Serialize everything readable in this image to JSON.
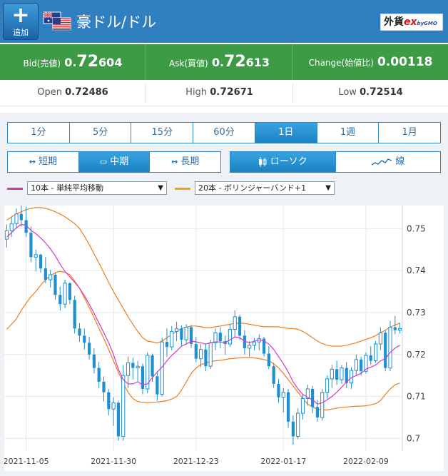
{
  "header": {
    "add_label": "追加",
    "add_glyph": "+",
    "pair_title": "豪ドル/ドル",
    "brand_main": "外貨",
    "brand_ex": "ex",
    "brand_sub": "byGMO",
    "flag_icon": "aus-usa-flag-icon"
  },
  "quote": {
    "bid": {
      "label": "Bid(売値)",
      "pre": "0.",
      "big": "72",
      "small": "604"
    },
    "ask": {
      "label": "Ask(買値)",
      "pre": "0.",
      "big": "72",
      "small": "613"
    },
    "change": {
      "label": "Change(始値比)",
      "value": "0.00118"
    }
  },
  "stats": {
    "open": {
      "label": "Open",
      "pre": "0.",
      "big": "72",
      "small": "486"
    },
    "high": {
      "label": "High",
      "pre": "0.",
      "big": "72",
      "small": "671"
    },
    "low": {
      "label": "Low",
      "pre": "0.",
      "big": "72",
      "small": "514"
    }
  },
  "timeframes": {
    "tabs": [
      "1分",
      "5分",
      "15分",
      "60分",
      "1日",
      "1週",
      "1月"
    ],
    "active": "1日"
  },
  "term": {
    "items": [
      "短期",
      "中期",
      "長期"
    ],
    "icons": [
      "↔",
      "▭",
      "↔"
    ],
    "active": "中期"
  },
  "chart_type": {
    "items": [
      "ローソク",
      "線"
    ],
    "active": "ローソク"
  },
  "indicators": {
    "primary": {
      "value": "10本 - 単純平均移動",
      "color": "#d6389c"
    },
    "secondary": {
      "value": "20本 - ボリンジャーバンド+1",
      "color": "#f2a20f"
    }
  },
  "colors": {
    "candle": "#1f8fcf",
    "sma": "#d637c9",
    "bollinger": "#f07d1c",
    "header": "#2f7fc1",
    "quote_bar": "#3d9b46"
  },
  "chart_data": {
    "type": "candlestick",
    "ylim": [
      0.697,
      0.7555
    ],
    "yticks": [
      0.75,
      0.74,
      0.73,
      0.72,
      0.71,
      0.7
    ],
    "ytick_labels": [
      "0.75",
      "0.74",
      "0.73",
      "0.72",
      "0.71",
      "0.7"
    ],
    "xtick_labels": [
      "2021-11-05",
      "2021-11-30",
      "2021-12-23",
      "2022-01-17",
      "2022-02-09"
    ],
    "xtick_index": [
      4,
      22,
      39,
      57,
      74
    ],
    "candles": [
      [
        0.7475,
        0.751,
        0.7455,
        0.7495
      ],
      [
        0.7495,
        0.7528,
        0.748,
        0.7512
      ],
      [
        0.7512,
        0.7548,
        0.75,
        0.7535
      ],
      [
        0.7535,
        0.7555,
        0.7505,
        0.752
      ],
      [
        0.752,
        0.7552,
        0.748,
        0.749
      ],
      [
        0.749,
        0.7505,
        0.742,
        0.7432
      ],
      [
        0.7432,
        0.745,
        0.7398,
        0.7438
      ],
      [
        0.7438,
        0.744,
        0.7395,
        0.7405
      ],
      [
        0.7405,
        0.7432,
        0.737,
        0.7378
      ],
      [
        0.7378,
        0.7402,
        0.736,
        0.739
      ],
      [
        0.739,
        0.7395,
        0.733,
        0.7342
      ],
      [
        0.7342,
        0.7362,
        0.7305,
        0.732
      ],
      [
        0.732,
        0.7378,
        0.731,
        0.737
      ],
      [
        0.737,
        0.7372,
        0.732,
        0.733
      ],
      [
        0.733,
        0.734,
        0.725,
        0.7262
      ],
      [
        0.7262,
        0.7275,
        0.723,
        0.7245
      ],
      [
        0.7245,
        0.7262,
        0.7212,
        0.7228
      ],
      [
        0.7228,
        0.7242,
        0.7188,
        0.72
      ],
      [
        0.72,
        0.7215,
        0.7155,
        0.7168
      ],
      [
        0.7168,
        0.7182,
        0.712,
        0.7135
      ],
      [
        0.7135,
        0.7148,
        0.7088,
        0.711
      ],
      [
        0.711,
        0.7118,
        0.7055,
        0.707
      ],
      [
        0.707,
        0.7098,
        0.703,
        0.7085
      ],
      [
        0.7085,
        0.709,
        0.6995,
        0.7005
      ],
      [
        0.7005,
        0.7175,
        0.6995,
        0.715
      ],
      [
        0.715,
        0.7195,
        0.712,
        0.718
      ],
      [
        0.718,
        0.7192,
        0.714,
        0.7168
      ],
      [
        0.7168,
        0.7185,
        0.7135,
        0.7172
      ],
      [
        0.7172,
        0.7178,
        0.7105,
        0.7118
      ],
      [
        0.7118,
        0.7205,
        0.7108,
        0.7198
      ],
      [
        0.7198,
        0.7202,
        0.7135,
        0.7148
      ],
      [
        0.7148,
        0.716,
        0.709,
        0.7105
      ],
      [
        0.7105,
        0.724,
        0.71,
        0.723
      ],
      [
        0.723,
        0.7262,
        0.7195,
        0.7218
      ],
      [
        0.7218,
        0.7268,
        0.721,
        0.7255
      ],
      [
        0.7255,
        0.7278,
        0.7232,
        0.7262
      ],
      [
        0.7262,
        0.727,
        0.722,
        0.7235
      ],
      [
        0.7235,
        0.7272,
        0.7225,
        0.7265
      ],
      [
        0.7265,
        0.727,
        0.7215,
        0.7225
      ],
      [
        0.7225,
        0.7242,
        0.7182,
        0.719
      ],
      [
        0.719,
        0.7225,
        0.717,
        0.7212
      ],
      [
        0.7212,
        0.7225,
        0.716,
        0.7172
      ],
      [
        0.7172,
        0.7235,
        0.7165,
        0.7228
      ],
      [
        0.7228,
        0.7262,
        0.721,
        0.7252
      ],
      [
        0.7252,
        0.7265,
        0.7215,
        0.7232
      ],
      [
        0.7232,
        0.7245,
        0.72,
        0.7225
      ],
      [
        0.7225,
        0.7272,
        0.7218,
        0.726
      ],
      [
        0.726,
        0.7305,
        0.724,
        0.729
      ],
      [
        0.729,
        0.7295,
        0.7235,
        0.7245
      ],
      [
        0.7245,
        0.7258,
        0.72,
        0.7215
      ],
      [
        0.7215,
        0.7232,
        0.7195,
        0.7222
      ],
      [
        0.7222,
        0.724,
        0.721,
        0.723
      ],
      [
        0.723,
        0.7248,
        0.721,
        0.7238
      ],
      [
        0.7238,
        0.7242,
        0.7195,
        0.7202
      ],
      [
        0.7202,
        0.722,
        0.7165,
        0.7172
      ],
      [
        0.7172,
        0.718,
        0.712,
        0.713
      ],
      [
        0.713,
        0.7142,
        0.7085,
        0.7098
      ],
      [
        0.7098,
        0.712,
        0.7062,
        0.711
      ],
      [
        0.711,
        0.7118,
        0.7025,
        0.704
      ],
      [
        0.704,
        0.7055,
        0.6985,
        0.7005
      ],
      [
        0.7005,
        0.7072,
        0.6998,
        0.706
      ],
      [
        0.706,
        0.7105,
        0.7045,
        0.7095
      ],
      [
        0.7095,
        0.7128,
        0.7078,
        0.7118
      ],
      [
        0.7118,
        0.7125,
        0.706,
        0.7075
      ],
      [
        0.7075,
        0.7092,
        0.704,
        0.705
      ],
      [
        0.705,
        0.7118,
        0.7042,
        0.711
      ],
      [
        0.711,
        0.715,
        0.7095,
        0.7142
      ],
      [
        0.7142,
        0.7175,
        0.712,
        0.7165
      ],
      [
        0.7165,
        0.7185,
        0.7128,
        0.714
      ],
      [
        0.714,
        0.7175,
        0.713,
        0.7168
      ],
      [
        0.7168,
        0.7182,
        0.712,
        0.7132
      ],
      [
        0.7132,
        0.717,
        0.7118,
        0.7162
      ],
      [
        0.7162,
        0.72,
        0.7148,
        0.7188
      ],
      [
        0.7188,
        0.7195,
        0.715,
        0.716
      ],
      [
        0.716,
        0.7205,
        0.7155,
        0.7198
      ],
      [
        0.7198,
        0.722,
        0.7175,
        0.7185
      ],
      [
        0.7185,
        0.7232,
        0.718,
        0.7225
      ],
      [
        0.7225,
        0.7265,
        0.721,
        0.7252
      ],
      [
        0.7252,
        0.7258,
        0.716,
        0.7168
      ],
      [
        0.7168,
        0.728,
        0.716,
        0.7265
      ],
      [
        0.7265,
        0.7292,
        0.7248,
        0.7258
      ],
      [
        0.7258,
        0.7275,
        0.725,
        0.7262
      ]
    ],
    "sma10": [
      0.748,
      0.749,
      0.7502,
      0.751,
      0.7508,
      0.7496,
      0.7488,
      0.7478,
      0.7466,
      0.7452,
      0.7435,
      0.7415,
      0.7398,
      0.7385,
      0.7372,
      0.7358,
      0.734,
      0.732,
      0.7298,
      0.7275,
      0.7252,
      0.7228,
      0.72,
      0.7165,
      0.714,
      0.713,
      0.713,
      0.7135,
      0.7128,
      0.713,
      0.7145,
      0.7158,
      0.717,
      0.7185,
      0.7198,
      0.7208,
      0.722,
      0.7225,
      0.7232,
      0.723,
      0.7228,
      0.7225,
      0.7228,
      0.723,
      0.723,
      0.7228,
      0.7235,
      0.7242,
      0.724,
      0.7232,
      0.7228,
      0.7232,
      0.7235,
      0.7232,
      0.7225,
      0.7212,
      0.7195,
      0.7178,
      0.7158,
      0.7135,
      0.7118,
      0.7105,
      0.7098,
      0.7092,
      0.7082,
      0.7085,
      0.7092,
      0.71,
      0.711,
      0.7122,
      0.7135,
      0.7145,
      0.715,
      0.7155,
      0.7165,
      0.717,
      0.7175,
      0.7185,
      0.719,
      0.7205,
      0.7215,
      0.7222
    ],
    "bb_upper": [
      0.752,
      0.7528,
      0.7535,
      0.754,
      0.7545,
      0.7548,
      0.755,
      0.755,
      0.7548,
      0.7545,
      0.754,
      0.7535,
      0.7528,
      0.752,
      0.7512,
      0.75,
      0.7482,
      0.7462,
      0.744,
      0.7418,
      0.7395,
      0.7372,
      0.735,
      0.733,
      0.731,
      0.729,
      0.7272,
      0.7255,
      0.724,
      0.7232,
      0.723,
      0.7228,
      0.7232,
      0.724,
      0.7248,
      0.7255,
      0.7262,
      0.7265,
      0.7268,
      0.7268,
      0.7266,
      0.7264,
      0.7264,
      0.7266,
      0.7268,
      0.727,
      0.7272,
      0.7274,
      0.7275,
      0.7274,
      0.7272,
      0.727,
      0.7268,
      0.7266,
      0.7266,
      0.7266,
      0.7266,
      0.7264,
      0.7262,
      0.7262,
      0.726,
      0.7255,
      0.7248,
      0.724,
      0.7232,
      0.7226,
      0.7222,
      0.722,
      0.722,
      0.722,
      0.7222,
      0.7225,
      0.7228,
      0.7232,
      0.7236,
      0.724,
      0.7245,
      0.7252,
      0.7258,
      0.7265,
      0.727,
      0.7275
    ],
    "bb_lower": [
      0.726,
      0.7272,
      0.7285,
      0.7305,
      0.7322,
      0.7338,
      0.735,
      0.7365,
      0.7378,
      0.7388,
      0.7395,
      0.7398,
      0.7396,
      0.739,
      0.7375,
      0.7358,
      0.7335,
      0.7312,
      0.7288,
      0.7262,
      0.7238,
      0.7212,
      0.7185,
      0.7158,
      0.7132,
      0.711,
      0.7095,
      0.7088,
      0.7086,
      0.7085,
      0.7086,
      0.7087,
      0.7088,
      0.709,
      0.7094,
      0.71,
      0.7115,
      0.7135,
      0.7155,
      0.7168,
      0.7176,
      0.718,
      0.7183,
      0.7185,
      0.7186,
      0.7188,
      0.719,
      0.7191,
      0.7192,
      0.7193,
      0.7193,
      0.7192,
      0.719,
      0.7188,
      0.7185,
      0.7178,
      0.7168,
      0.7155,
      0.714,
      0.7125,
      0.711,
      0.7095,
      0.7082,
      0.7075,
      0.707,
      0.7068,
      0.7068,
      0.707,
      0.7072,
      0.7074,
      0.7075,
      0.7076,
      0.7077,
      0.7077,
      0.7078,
      0.708,
      0.7083,
      0.709,
      0.7105,
      0.7118,
      0.7128,
      0.7132
    ]
  }
}
